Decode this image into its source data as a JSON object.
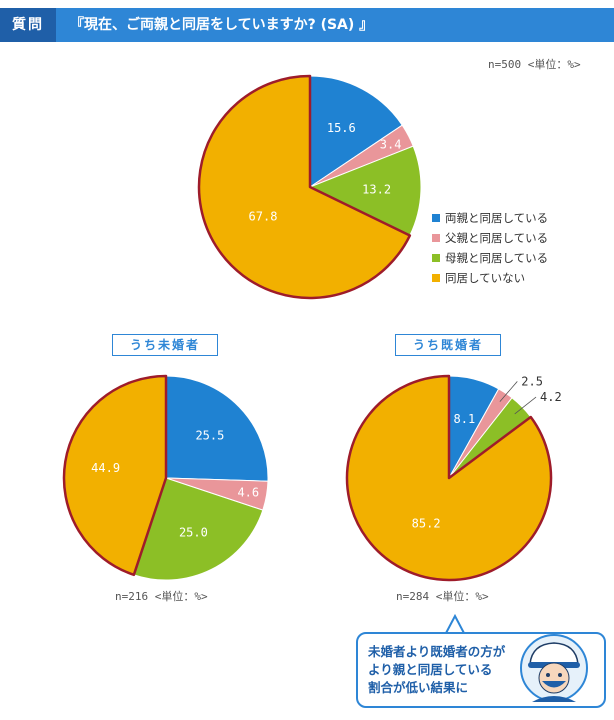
{
  "header": {
    "tag": "質問",
    "title": "『現在、ご両親と同居をしていますか? (SA) 』"
  },
  "colors": {
    "both": "#1f82d2",
    "father": "#e9969a",
    "mother": "#8cbf26",
    "none": "#f2b000",
    "highlight": "#9e1c2a",
    "accent": "#2e86d6"
  },
  "legend": [
    {
      "label": "両親と同居している",
      "color": "#1f82d2"
    },
    {
      "label": "父親と同居している",
      "color": "#e9969a"
    },
    {
      "label": "母親と同居している",
      "color": "#8cbf26"
    },
    {
      "label": "同居していない",
      "color": "#f2b000"
    }
  ],
  "chart_data": [
    {
      "type": "pie",
      "note": "n=500 <単位：%>",
      "categories": [
        "両親と同居している",
        "父親と同居している",
        "母親と同居している",
        "同居していない"
      ],
      "values": [
        15.6,
        3.4,
        13.2,
        67.8
      ],
      "highlight": "同居していない"
    },
    {
      "type": "pie",
      "subtitle": "うち未婚者",
      "note": "n=216 <単位：%>",
      "categories": [
        "両親と同居している",
        "父親と同居している",
        "母親と同居している",
        "同居していない"
      ],
      "values": [
        25.5,
        4.6,
        25.0,
        44.9
      ],
      "highlight": "同居していない"
    },
    {
      "type": "pie",
      "subtitle": "うち既婚者",
      "note": "n=284 <単位：%>",
      "categories": [
        "両親と同居している",
        "父親と同居している",
        "母親と同居している",
        "同居していない"
      ],
      "values": [
        8.1,
        2.5,
        4.2,
        85.2
      ],
      "highlight": "同居していない"
    }
  ],
  "callout": {
    "text": "未婚者より既婚者の方が\nより親と同居している\n割合が低い結果に",
    "icon": "mascot-icon"
  }
}
